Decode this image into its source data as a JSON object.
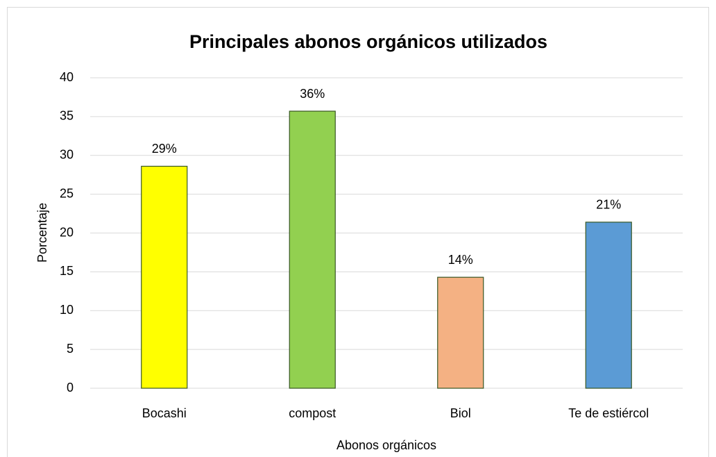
{
  "chart_data": {
    "type": "bar",
    "title": "Principales abonos orgánicos utilizados",
    "x_label": "Abonos orgánicos",
    "y_label": "Porcentaje",
    "categories": [
      "Bocashi",
      "compost",
      "Biol",
      "Te de estiércol"
    ],
    "values": [
      28.6,
      35.7,
      14.3,
      21.4
    ],
    "value_labels": [
      "29%",
      "36%",
      "14%",
      "21%"
    ],
    "colors": [
      "#ffff00",
      "#92d050",
      "#f4b183",
      "#5b9bd5"
    ],
    "ylim": [
      0,
      40
    ],
    "yticks": [
      0,
      5,
      10,
      15,
      20,
      25,
      30,
      35,
      40
    ],
    "grid": true
  }
}
